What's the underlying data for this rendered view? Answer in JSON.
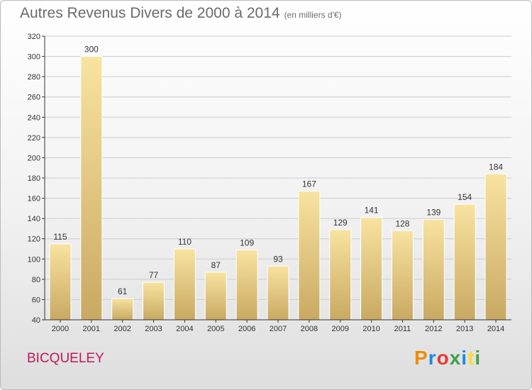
{
  "header": {
    "title": "Autres Revenus Divers de 2000 à 2014",
    "subtitle": "(en milliers d'€)"
  },
  "footer": {
    "location": "BICQUELEY",
    "logo_letters": [
      "P",
      "r",
      "o",
      "x",
      "i",
      "t",
      "i"
    ],
    "logo_colors": [
      "#f08c00",
      "#1e88e5",
      "#e53935",
      "#43a047",
      "#1e88e5",
      "#fdd835",
      "#43a047"
    ]
  },
  "colors": {
    "bar_top": "#f8e3a0",
    "bar_bottom": "#c9a962",
    "grid": "#cccccc",
    "location": "#c2185b"
  },
  "chart_data": {
    "type": "bar",
    "title": "Autres Revenus Divers de 2000 à 2014",
    "subtitle": "(en milliers d'€)",
    "xlabel": "",
    "ylabel": "",
    "categories": [
      "2000",
      "2001",
      "2002",
      "2003",
      "2004",
      "2005",
      "2006",
      "2007",
      "2008",
      "2009",
      "2010",
      "2011",
      "2012",
      "2013",
      "2014"
    ],
    "values": [
      115,
      300,
      61,
      77,
      110,
      87,
      109,
      93,
      167,
      129,
      141,
      128,
      139,
      154,
      184
    ],
    "ylim": [
      40,
      320
    ],
    "yticks": [
      40,
      60,
      80,
      100,
      120,
      140,
      160,
      180,
      200,
      220,
      240,
      260,
      280,
      300,
      320
    ],
    "grid": true,
    "legend": "none"
  }
}
